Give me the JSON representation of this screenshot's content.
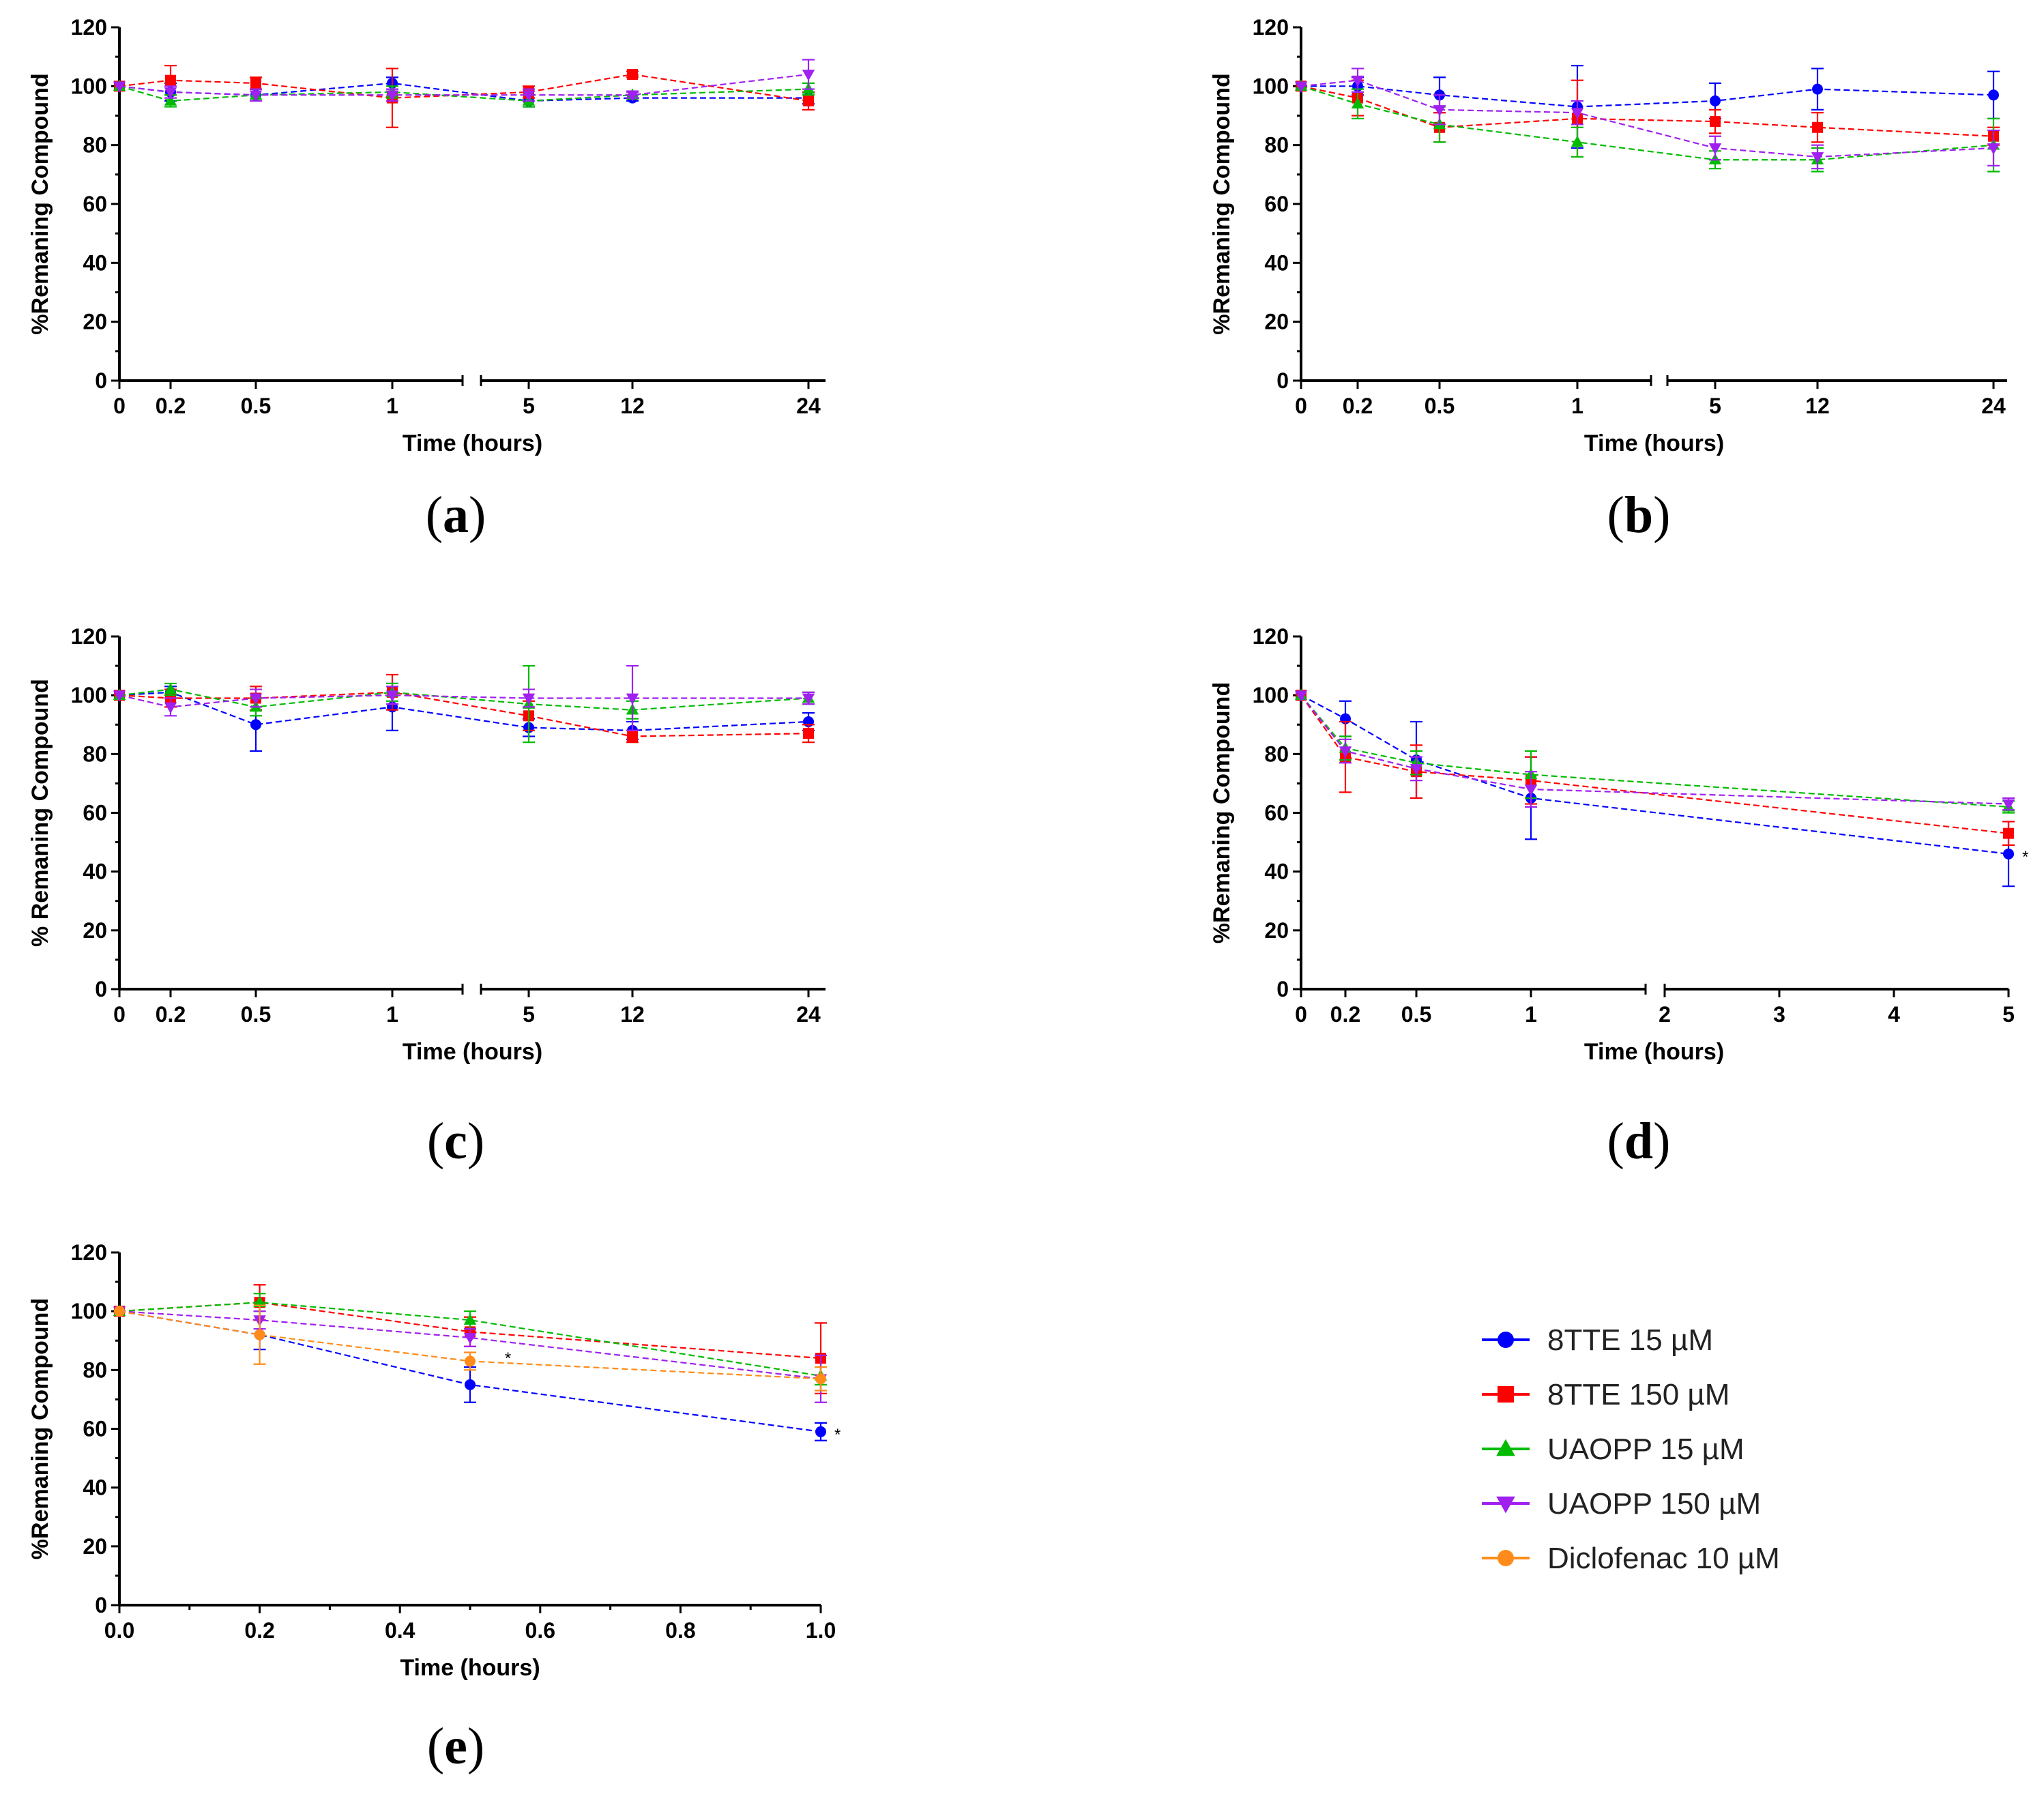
{
  "figure": {
    "background": "#ffffff"
  },
  "series_styles": [
    {
      "name": "8TTE 15 µM",
      "color": "#0000ff",
      "marker": "circle"
    },
    {
      "name": "8TTE 150 µM",
      "color": "#ff0000",
      "marker": "square"
    },
    {
      "name": "UAOPP 15 µM",
      "color": "#00bb00",
      "marker": "triangle-up"
    },
    {
      "name": "UAOPP 150 µM",
      "color": "#a020f0",
      "marker": "triangle-down"
    },
    {
      "name": "Diclofenac 10 µM",
      "color": "#ff8c1a",
      "marker": "circle"
    }
  ],
  "legend": {
    "items": [
      "8TTE 15 µM",
      "8TTE 150 µM",
      "UAOPP 15 µM",
      "UAOPP 150 µM",
      "Diclofenac 10 µM"
    ]
  },
  "chart_data": [
    {
      "id": "a",
      "label": "(a)",
      "label_letter": "a",
      "type": "line",
      "xlabel": "Time (hours)",
      "ylabel": "%Remaning Compound",
      "ylim": [
        0,
        120
      ],
      "yticks": [
        "0",
        "20",
        "40",
        "60",
        "80",
        "100",
        "120"
      ],
      "grid": false,
      "x_categories": [
        "0",
        "0.2",
        "0.5",
        "1",
        "5",
        "12",
        "24"
      ],
      "axis_break_after": "1",
      "series": [
        {
          "name": "8TTE 15 µM",
          "values": [
            100,
            98,
            97,
            101,
            95,
            96,
            96
          ],
          "errors": [
            0,
            3,
            2,
            2,
            2,
            1,
            2
          ]
        },
        {
          "name": "8TTE 150 µM",
          "values": [
            100,
            102,
            101,
            96,
            98,
            104,
            95
          ],
          "errors": [
            0,
            5,
            2,
            10,
            2,
            1,
            3
          ]
        },
        {
          "name": "UAOPP 15 µM",
          "values": [
            100,
            95,
            97,
            98,
            95,
            97,
            99
          ],
          "errors": [
            0,
            2,
            2,
            2,
            2,
            1,
            2
          ]
        },
        {
          "name": "UAOPP 150 µM",
          "values": [
            100,
            98,
            97,
            97,
            97,
            97,
            104
          ],
          "errors": [
            0,
            2,
            2,
            2,
            2,
            1,
            5
          ]
        }
      ],
      "annotations": []
    },
    {
      "id": "b",
      "label": "(b)",
      "label_letter": "b",
      "type": "line",
      "xlabel": "Time (hours)",
      "ylabel": "%Remaning Compound",
      "ylim": [
        0,
        120
      ],
      "yticks": [
        "0",
        "20",
        "40",
        "60",
        "80",
        "100",
        "120"
      ],
      "grid": false,
      "x_categories": [
        "0",
        "0.2",
        "0.5",
        "1",
        "5",
        "12",
        "24"
      ],
      "axis_break_after": "1",
      "series": [
        {
          "name": "8TTE 15 µM",
          "values": [
            100,
            100,
            97,
            93,
            95,
            99,
            97
          ],
          "errors": [
            0,
            3,
            6,
            14,
            6,
            7,
            8
          ]
        },
        {
          "name": "8TTE 150 µM",
          "values": [
            100,
            96,
            86,
            89,
            88,
            86,
            83
          ],
          "errors": [
            0,
            6,
            5,
            13,
            4,
            5,
            3
          ]
        },
        {
          "name": "UAOPP 15 µM",
          "values": [
            100,
            94,
            87,
            81,
            75,
            75,
            80
          ],
          "errors": [
            0,
            5,
            6,
            5,
            3,
            4,
            9
          ]
        },
        {
          "name": "UAOPP 150 µM",
          "values": [
            100,
            102,
            92,
            91,
            79,
            76,
            79
          ],
          "errors": [
            0,
            4,
            5,
            4,
            4,
            4,
            6
          ]
        }
      ],
      "annotations": []
    },
    {
      "id": "c",
      "label": "(c)",
      "label_letter": "c",
      "type": "line",
      "xlabel": "Time (hours)",
      "ylabel": "% Remaning Compound",
      "ylim": [
        0,
        120
      ],
      "yticks": [
        "0",
        "20",
        "40",
        "60",
        "80",
        "100",
        "120"
      ],
      "grid": false,
      "x_categories": [
        "0",
        "0.2",
        "0.5",
        "1",
        "5",
        "12",
        "24"
      ],
      "axis_break_after": "1",
      "series": [
        {
          "name": "8TTE 15 µM",
          "values": [
            100,
            101,
            90,
            96,
            89,
            88,
            91
          ],
          "errors": [
            0,
            2,
            9,
            8,
            3,
            3,
            3
          ]
        },
        {
          "name": "8TTE 150 µM",
          "values": [
            100,
            99,
            99,
            101,
            93,
            86,
            87
          ],
          "errors": [
            0,
            3,
            4,
            6,
            5,
            2,
            3
          ]
        },
        {
          "name": "UAOPP 15 µM",
          "values": [
            100,
            102,
            96,
            101,
            97,
            95,
            99
          ],
          "errors": [
            0,
            2,
            3,
            3,
            13,
            3,
            2
          ]
        },
        {
          "name": "UAOPP 150 µM",
          "values": [
            100,
            96,
            99,
            100,
            99,
            99,
            99
          ],
          "errors": [
            0,
            3,
            3,
            3,
            3,
            11,
            2
          ]
        }
      ],
      "annotations": []
    },
    {
      "id": "d",
      "label": "(d)",
      "label_letter": "d",
      "type": "line",
      "xlabel": "Time (hours)",
      "ylabel": "%Remaning Compound",
      "ylim": [
        0,
        120
      ],
      "yticks": [
        "0",
        "20",
        "40",
        "60",
        "80",
        "100",
        "120"
      ],
      "grid": false,
      "x_categories": [
        "0",
        "0.2",
        "0.5",
        "1",
        "2",
        "3",
        "4",
        "5"
      ],
      "axis_break_after": "1",
      "series": [
        {
          "name": "8TTE 15 µM",
          "x": [
            "0",
            "0.2",
            "0.5",
            "1",
            "5"
          ],
          "values": [
            100,
            92,
            78,
            65,
            46
          ],
          "errors": [
            0,
            6,
            13,
            14,
            11
          ]
        },
        {
          "name": "8TTE 150 µM",
          "x": [
            "0",
            "0.2",
            "0.5",
            "1",
            "5"
          ],
          "values": [
            100,
            79,
            74,
            71,
            53
          ],
          "errors": [
            0,
            12,
            9,
            8,
            4
          ]
        },
        {
          "name": "UAOPP 15 µM",
          "x": [
            "0",
            "0.2",
            "0.5",
            "1",
            "5"
          ],
          "values": [
            100,
            82,
            77,
            73,
            62
          ],
          "errors": [
            0,
            4,
            4,
            8,
            2
          ]
        },
        {
          "name": "UAOPP 150 µM",
          "x": [
            "0",
            "0.2",
            "0.5",
            "1",
            "5"
          ],
          "values": [
            100,
            81,
            75,
            68,
            63
          ],
          "errors": [
            0,
            4,
            4,
            6,
            2
          ]
        }
      ],
      "annotations": [
        {
          "text": "*",
          "x": "5",
          "y": 46
        }
      ]
    },
    {
      "id": "e",
      "label": "(e)",
      "label_letter": "e",
      "type": "line",
      "xlabel": "Time (hours)",
      "ylabel": "%Remaning Compound",
      "ylim": [
        0,
        120
      ],
      "yticks": [
        "0",
        "20",
        "40",
        "60",
        "80",
        "100",
        "120"
      ],
      "grid": false,
      "xlim": [
        0.0,
        1.0
      ],
      "xticks": [
        "0.0",
        "0.2",
        "0.4",
        "0.6",
        "0.8",
        "1.0"
      ],
      "series": [
        {
          "name": "8TTE 15 µM",
          "x": [
            0,
            0.2,
            0.5,
            1.0
          ],
          "values": [
            100,
            92,
            75,
            59
          ],
          "errors": [
            0,
            5,
            6,
            3
          ]
        },
        {
          "name": "8TTE 150 µM",
          "x": [
            0,
            0.2,
            0.5,
            1.0
          ],
          "values": [
            100,
            103,
            93,
            84
          ],
          "errors": [
            0,
            6,
            5,
            12
          ]
        },
        {
          "name": "UAOPP 15 µM",
          "x": [
            0,
            0.2,
            0.5,
            1.0
          ],
          "values": [
            100,
            103,
            97,
            78
          ],
          "errors": [
            0,
            3,
            3,
            3
          ]
        },
        {
          "name": "UAOPP 150 µM",
          "x": [
            0,
            0.2,
            0.5,
            1.0
          ],
          "values": [
            100,
            97,
            91,
            77
          ],
          "errors": [
            0,
            3,
            3,
            8
          ]
        },
        {
          "name": "Diclofenac 10 µM",
          "x": [
            0,
            0.2,
            0.5,
            1.0
          ],
          "values": [
            100,
            92,
            83,
            77
          ],
          "errors": [
            0,
            10,
            3,
            4
          ]
        }
      ],
      "annotations": [
        {
          "text": "*",
          "x": 1.0,
          "y": 59
        },
        {
          "text": "*",
          "x": 0.53,
          "y": 85
        }
      ]
    }
  ]
}
